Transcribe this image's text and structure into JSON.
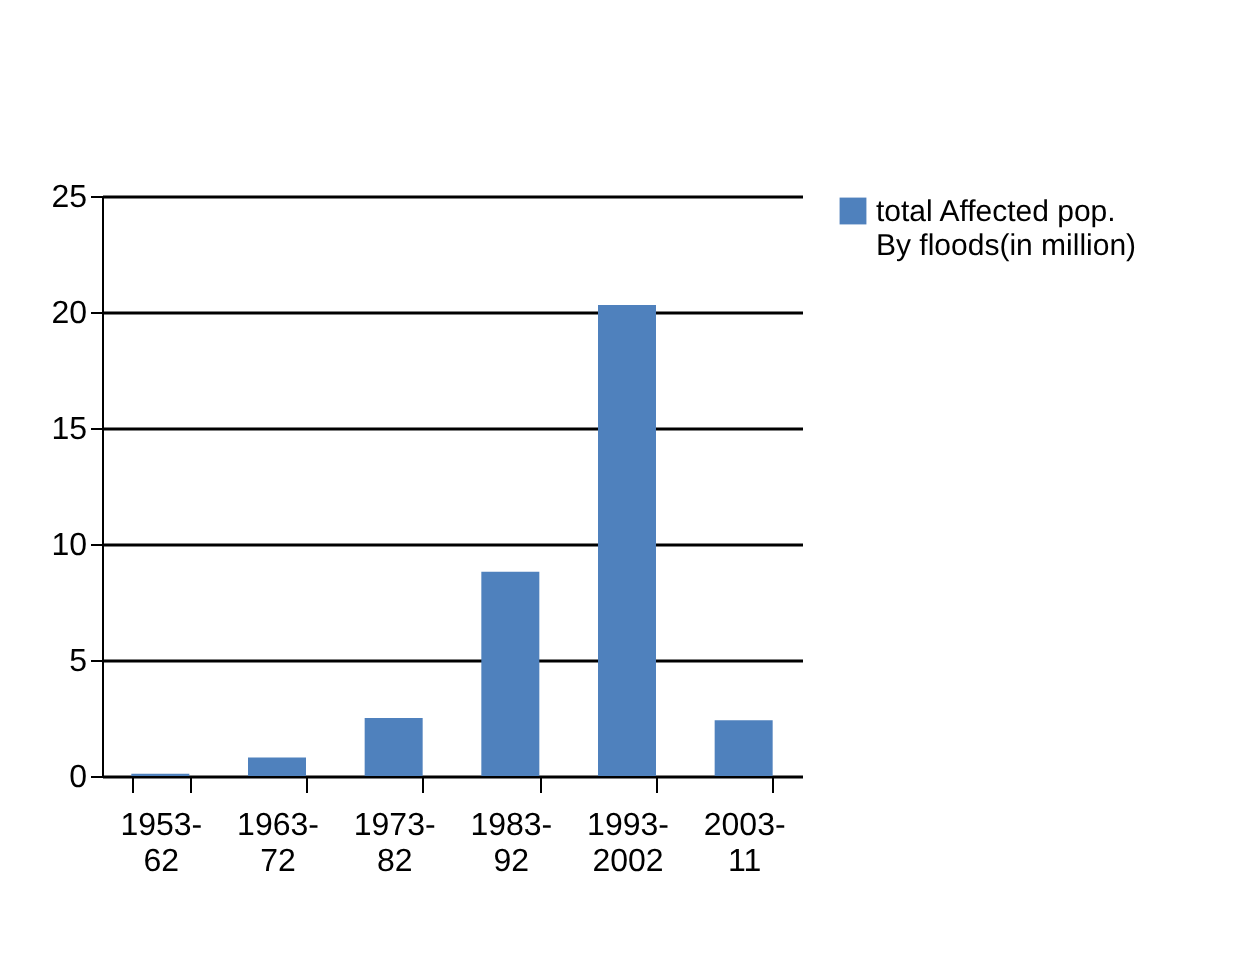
{
  "chart_data": {
    "type": "bar",
    "categories": [
      "1953-62",
      "1963-72",
      "1973-82",
      "1983-92",
      "1993-2002",
      "2003-11"
    ],
    "series": [
      {
        "name": "total Affected pop. By floods(in million)",
        "color": "#4f81bd",
        "values": [
          0.1,
          0.8,
          2.5,
          8.8,
          20.3,
          2.4
        ]
      }
    ],
    "ylim": [
      0,
      25
    ],
    "yticks": [
      0,
      5,
      10,
      15,
      20,
      25
    ],
    "grid": "y",
    "legend": "right"
  }
}
